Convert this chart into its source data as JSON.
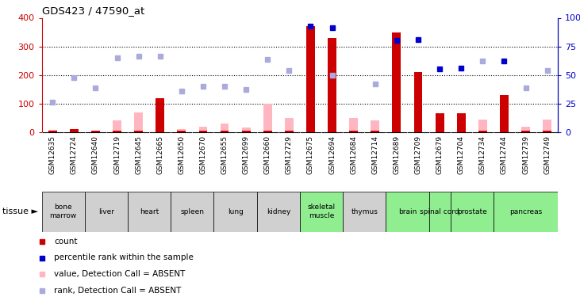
{
  "title": "GDS423 / 47590_at",
  "samples": [
    "GSM12635",
    "GSM12724",
    "GSM12640",
    "GSM12719",
    "GSM12645",
    "GSM12665",
    "GSM12650",
    "GSM12670",
    "GSM12655",
    "GSM12699",
    "GSM12660",
    "GSM12729",
    "GSM12675",
    "GSM12694",
    "GSM12684",
    "GSM12714",
    "GSM12689",
    "GSM12709",
    "GSM12679",
    "GSM12704",
    "GSM12734",
    "GSM12744",
    "GSM12739",
    "GSM12749"
  ],
  "count_values": [
    5,
    10,
    5,
    5,
    5,
    120,
    5,
    5,
    5,
    5,
    5,
    5,
    370,
    330,
    5,
    5,
    350,
    210,
    65,
    65,
    5,
    130,
    5,
    5
  ],
  "absent_value": [
    8,
    12,
    5,
    40,
    70,
    null,
    12,
    20,
    30,
    15,
    100,
    50,
    null,
    null,
    50,
    40,
    null,
    null,
    null,
    null,
    45,
    null,
    20,
    45
  ],
  "percentile_rank_left": [
    null,
    null,
    null,
    null,
    null,
    null,
    null,
    null,
    null,
    null,
    null,
    null,
    370,
    365,
    null,
    null,
    320,
    325,
    220,
    225,
    null,
    250,
    null,
    null
  ],
  "absent_rank_left": [
    105,
    190,
    155,
    260,
    265,
    265,
    145,
    160,
    160,
    150,
    255,
    215,
    null,
    200,
    null,
    170,
    null,
    null,
    null,
    null,
    250,
    null,
    155,
    215
  ],
  "tissues": [
    {
      "name": "bone\nmarrow",
      "samples": [
        "GSM12635",
        "GSM12724"
      ],
      "color": "#d0d0d0"
    },
    {
      "name": "liver",
      "samples": [
        "GSM12640",
        "GSM12719"
      ],
      "color": "#d0d0d0"
    },
    {
      "name": "heart",
      "samples": [
        "GSM12645",
        "GSM12665"
      ],
      "color": "#d0d0d0"
    },
    {
      "name": "spleen",
      "samples": [
        "GSM12650",
        "GSM12670"
      ],
      "color": "#d0d0d0"
    },
    {
      "name": "lung",
      "samples": [
        "GSM12655",
        "GSM12699"
      ],
      "color": "#d0d0d0"
    },
    {
      "name": "kidney",
      "samples": [
        "GSM12660",
        "GSM12729"
      ],
      "color": "#d0d0d0"
    },
    {
      "name": "skeletal\nmuscle",
      "samples": [
        "GSM12675",
        "GSM12694"
      ],
      "color": "#90ee90"
    },
    {
      "name": "thymus",
      "samples": [
        "GSM12684",
        "GSM12714"
      ],
      "color": "#d0d0d0"
    },
    {
      "name": "brain",
      "samples": [
        "GSM12689",
        "GSM12709"
      ],
      "color": "#90ee90"
    },
    {
      "name": "spinal cord",
      "samples": [
        "GSM12679"
      ],
      "color": "#90ee90"
    },
    {
      "name": "prostate",
      "samples": [
        "GSM12704",
        "GSM12734"
      ],
      "color": "#90ee90"
    },
    {
      "name": "pancreas",
      "samples": [
        "GSM12744",
        "GSM12739",
        "GSM12749"
      ],
      "color": "#90ee90"
    }
  ],
  "ylim_left": [
    0,
    400
  ],
  "ylim_right": [
    0,
    100
  ],
  "yticks_left": [
    0,
    100,
    200,
    300,
    400
  ],
  "yticks_right": [
    0,
    25,
    50,
    75,
    100
  ],
  "bg_color": "#ffffff",
  "bar_color_count": "#cc0000",
  "bar_color_absent_value": "#ffb6c1",
  "dot_color_rank": "#0000cc",
  "dot_color_absent_rank": "#aaaadd",
  "gsm_band_color": "#c8c8c8"
}
